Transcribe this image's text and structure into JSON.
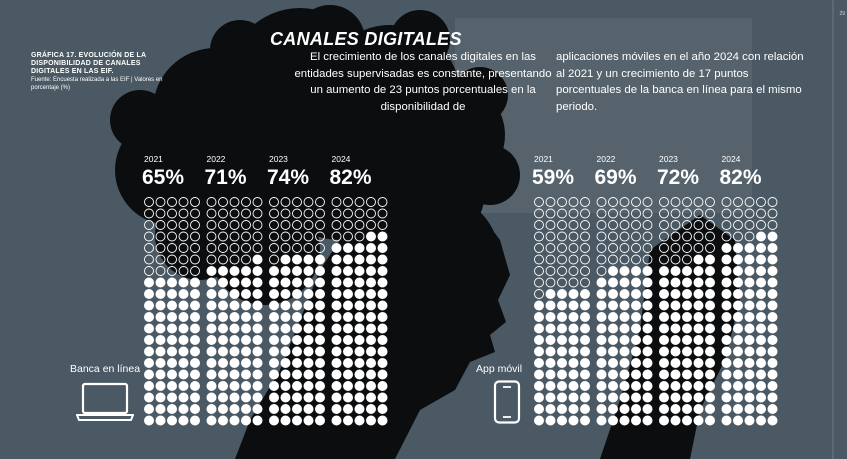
{
  "header": {
    "figure_title": "GRÁFICA 17. EVOLUCIÓN DE LA DISPONIBILIDAD DE CANALES DIGITALES EN LAS EIF.",
    "figure_source": "Fuente: Encuesta realizada a las EIF | Valores en porcentaje (%)",
    "page_title": "CANALES DIGITALES",
    "paragraph_col1": "El crecimiento de los canales digitales en las entidades supervisadas es constante, presentando un aumento de 23 puntos porcentuales en la disponibilidad de",
    "paragraph_col2": "aplicaciones móviles en el año 2024 con relación al 2021 y un crecimiento de 17 puntos porcentuales de la banca en línea para el mismo periodo.",
    "side_page_number": "29"
  },
  "panels": {
    "banca": {
      "label": "Banca en línea",
      "icon": "laptop-icon"
    },
    "app": {
      "label": "App móvil",
      "icon": "smartphone-icon"
    }
  },
  "colors": {
    "background": "#4a5963",
    "silhouette": "#0b0d0f",
    "dot_filled": "#ffffff",
    "dot_empty_stroke": "#ffffff"
  },
  "chart_data": [
    {
      "type": "waffle",
      "title": "Banca en línea",
      "categories": [
        "2021",
        "2022",
        "2023",
        "2024"
      ],
      "values": [
        65,
        71,
        74,
        82
      ],
      "value_labels": [
        "65%",
        "71%",
        "74%",
        "82%"
      ],
      "unit": "%",
      "grid": "5 columns × 20 rows per year (100 dots)"
    },
    {
      "type": "waffle",
      "title": "App móvil",
      "categories": [
        "2021",
        "2022",
        "2023",
        "2024"
      ],
      "values": [
        59,
        69,
        72,
        82
      ],
      "value_labels": [
        "59%",
        "69%",
        "72%",
        "82%"
      ],
      "unit": "%",
      "grid": "5 columns × 20 rows per year (100 dots)"
    }
  ]
}
